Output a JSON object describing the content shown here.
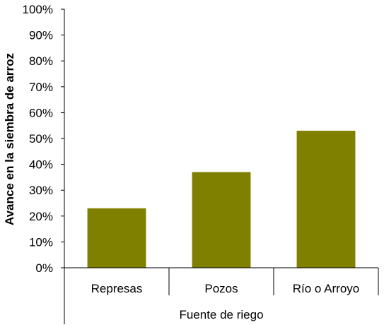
{
  "chart_data": {
    "type": "bar",
    "title": "",
    "xlabel": "Fuente de riego",
    "ylabel": "Avance en la siembra de arroz",
    "categories": [
      "Represas",
      "Pozos",
      "Río o Arroyo"
    ],
    "values": [
      0.23,
      0.37,
      0.53
    ],
    "ylim": [
      0,
      1
    ],
    "yticks": [
      0,
      0.1,
      0.2,
      0.3,
      0.4,
      0.5,
      0.6,
      0.7,
      0.8,
      0.9,
      1.0
    ],
    "ytick_labels": [
      "0%",
      "10%",
      "20%",
      "30%",
      "40%",
      "50%",
      "60%",
      "70%",
      "80%",
      "90%",
      "100%"
    ],
    "grid": false,
    "legend": "none",
    "bar_color": "#808000"
  }
}
